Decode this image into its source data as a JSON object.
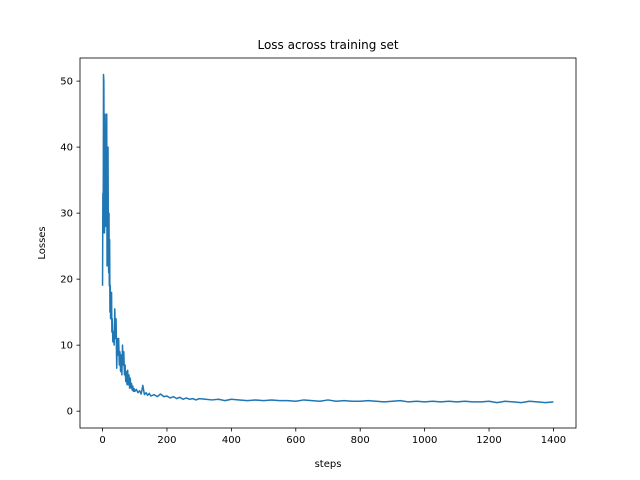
{
  "chart_data": {
    "type": "line",
    "title": "Loss across training set",
    "xlabel": "steps",
    "ylabel": "Losses",
    "xlim": [
      -70,
      1470
    ],
    "ylim": [
      -2.55,
      53.5
    ],
    "xticks": [
      0,
      200,
      400,
      600,
      800,
      1000,
      1200,
      1400
    ],
    "yticks": [
      0,
      10,
      20,
      30,
      40,
      50
    ],
    "grid": false,
    "legend": "none",
    "color": "#1f77b4",
    "series": [
      {
        "x": [
          0,
          1,
          2,
          3,
          4,
          5,
          6,
          7,
          8,
          9,
          10,
          11,
          12,
          13,
          14,
          15,
          16,
          17,
          18,
          19,
          20,
          21,
          22,
          23,
          24,
          25,
          26,
          27,
          28,
          29,
          30,
          32,
          34,
          36,
          38,
          40,
          42,
          44,
          46,
          48,
          50,
          52,
          54,
          56,
          58,
          60,
          62,
          64,
          66,
          68,
          70,
          72,
          74,
          76,
          78,
          80,
          82,
          84,
          86,
          88,
          90,
          92,
          94,
          96,
          98,
          100,
          105,
          110,
          115,
          120,
          125,
          130,
          135,
          140,
          145,
          150,
          160,
          170,
          180,
          190,
          200,
          210,
          220,
          230,
          240,
          250,
          260,
          270,
          280,
          290,
          300,
          320,
          340,
          360,
          380,
          400,
          425,
          450,
          475,
          500,
          525,
          550,
          575,
          600,
          625,
          650,
          675,
          700,
          725,
          750,
          775,
          800,
          825,
          850,
          875,
          900,
          925,
          950,
          975,
          1000,
          1025,
          1050,
          1075,
          1100,
          1125,
          1150,
          1175,
          1200,
          1225,
          1250,
          1275,
          1300,
          1325,
          1350,
          1375,
          1400
        ],
        "y": [
          19.0,
          33.0,
          27.0,
          51.0,
          50.0,
          38.0,
          27.0,
          30.0,
          45.0,
          33.0,
          28.0,
          42.0,
          30.0,
          45.0,
          22.0,
          35.0,
          25.0,
          40.0,
          26.0,
          21.0,
          30.0,
          19.0,
          26.0,
          15.0,
          19.0,
          14.0,
          17.0,
          15.0,
          18.0,
          12.0,
          14.0,
          10.5,
          12.0,
          10.0,
          15.5,
          11.0,
          14.0,
          6.5,
          11.0,
          8.5,
          11.0,
          7.0,
          9.0,
          6.0,
          8.5,
          5.5,
          10.0,
          7.0,
          9.0,
          5.5,
          7.0,
          4.5,
          6.0,
          4.0,
          6.2,
          4.0,
          5.5,
          3.5,
          5.0,
          3.5,
          4.2,
          3.2,
          3.8,
          3.0,
          3.4,
          3.0,
          3.3,
          2.8,
          3.1,
          2.6,
          3.9,
          2.5,
          2.8,
          2.4,
          2.7,
          2.3,
          2.5,
          2.2,
          2.6,
          2.2,
          2.3,
          2.0,
          2.2,
          1.9,
          2.1,
          1.8,
          2.0,
          1.8,
          1.9,
          1.7,
          1.9,
          1.8,
          1.7,
          1.8,
          1.6,
          1.8,
          1.7,
          1.6,
          1.7,
          1.6,
          1.7,
          1.6,
          1.6,
          1.5,
          1.7,
          1.6,
          1.5,
          1.7,
          1.5,
          1.6,
          1.5,
          1.5,
          1.6,
          1.5,
          1.4,
          1.5,
          1.6,
          1.4,
          1.5,
          1.4,
          1.5,
          1.4,
          1.5,
          1.4,
          1.5,
          1.4,
          1.4,
          1.5,
          1.3,
          1.5,
          1.4,
          1.3,
          1.5,
          1.4,
          1.3,
          1.4
        ]
      }
    ]
  }
}
